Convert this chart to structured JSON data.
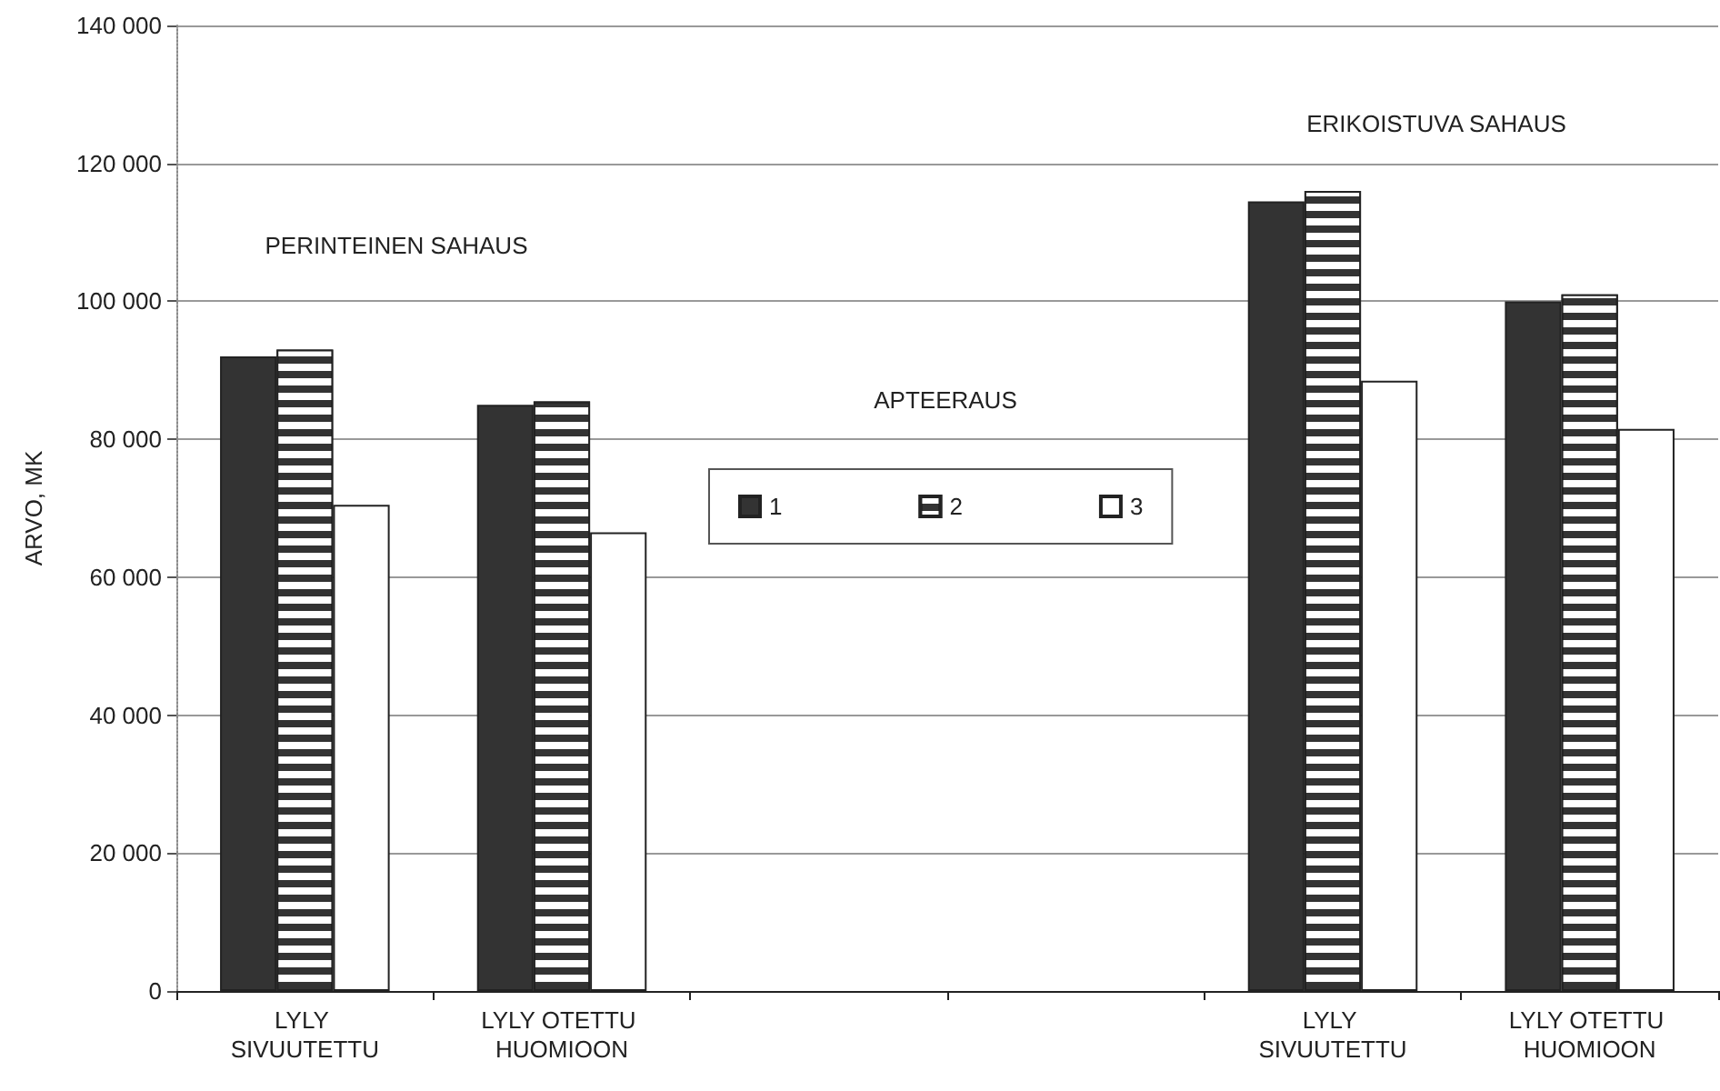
{
  "chart_data": {
    "type": "bar",
    "ylabel": "ARVO, MK",
    "categories": [
      "LYLY SIVUUTETTU",
      "LYLY OTETTU HUOMIOON",
      null,
      null,
      "LYLY SIVUUTETTU",
      "LYLY OTETTU HUOMIOON"
    ],
    "series": [
      {
        "name": "1",
        "color": "#333333",
        "values": [
          92000,
          85000,
          null,
          null,
          114500,
          100000
        ]
      },
      {
        "name": "2",
        "color": "#333333",
        "values": [
          93000,
          85500,
          null,
          null,
          116000,
          101000
        ]
      },
      {
        "name": "3",
        "color": "#ffffff",
        "values": [
          70500,
          66500,
          null,
          null,
          88500,
          81500
        ]
      }
    ],
    "ylim": [
      0,
      140000
    ],
    "yticks": [
      {
        "value": 0,
        "label": "0"
      },
      {
        "value": 20000,
        "label": "20 000"
      },
      {
        "value": 40000,
        "label": "40 000"
      },
      {
        "value": 60000,
        "label": "60 000"
      },
      {
        "value": 80000,
        "label": "80 000"
      },
      {
        "value": 100000,
        "label": "100 000"
      },
      {
        "value": 120000,
        "label": "120 000"
      },
      {
        "value": 140000,
        "label": "140 000"
      }
    ],
    "annotations": [
      "PERINTEINEN SAHAUS",
      "APTEERAUS",
      "ERIKOISTUVA SAHAUS"
    ],
    "grid": "y",
    "legend": "center"
  }
}
